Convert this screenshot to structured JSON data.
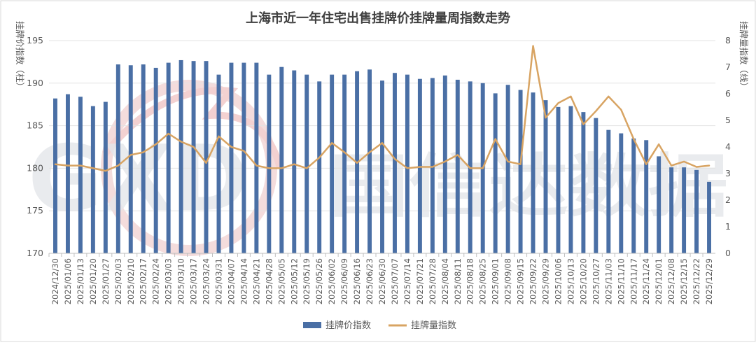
{
  "chart_data": {
    "type": "bar",
    "title": "上海市近一年住宅出售挂牌价挂牌量周指数走势",
    "ylabel_left": "挂牌价指数（柱）",
    "ylabel_right": "挂牌量指数（线）",
    "ylim_left": [
      170,
      195
    ],
    "yticks_left": [
      170,
      175,
      180,
      185,
      190,
      195
    ],
    "ylim_right": [
      0,
      8
    ],
    "yticks_right": [
      0,
      1,
      2,
      3,
      4,
      5,
      6,
      7,
      8
    ],
    "grid": true,
    "legend_position": "bottom",
    "watermark_text": "国信达数据",
    "categories": [
      "2024/12/30",
      "2025/01/06",
      "2025/01/13",
      "2025/01/20",
      "2025/01/27",
      "2025/02/03",
      "2025/02/10",
      "2025/02/17",
      "2025/02/24",
      "2025/03/03",
      "2025/03/10",
      "2025/03/17",
      "2025/03/24",
      "2025/03/31",
      "2025/04/07",
      "2025/04/14",
      "2025/04/21",
      "2025/04/28",
      "2025/05/05",
      "2025/05/12",
      "2025/05/19",
      "2025/05/26",
      "2025/06/02",
      "2025/06/09",
      "2025/06/16",
      "2025/06/23",
      "2025/06/30",
      "2025/07/07",
      "2025/07/14",
      "2025/07/21",
      "2025/07/28",
      "2025/08/04",
      "2025/08/11",
      "2025/08/18",
      "2025/08/25",
      "2025/09/01",
      "2025/09/08",
      "2025/09/15",
      "2025/09/22",
      "2025/09/29",
      "2025/10/06",
      "2025/10/13",
      "2025/10/20",
      "2025/10/27",
      "2025/11/03",
      "2025/11/10",
      "2025/11/17",
      "2025/11/24",
      "2025/12/01",
      "2025/12/08",
      "2025/12/15",
      "2025/12/22",
      "2025/12/29"
    ],
    "series": [
      {
        "name": "挂牌价指数",
        "kind": "bar",
        "axis": "left",
        "color": "#4a6fa5",
        "values": [
          188.2,
          188.7,
          188.4,
          187.3,
          187.8,
          192.2,
          192.1,
          192.2,
          191.8,
          192.4,
          192.7,
          192.6,
          192.6,
          191.0,
          192.4,
          192.4,
          192.4,
          191.0,
          191.9,
          191.5,
          191.0,
          190.2,
          191.0,
          191.0,
          191.4,
          191.6,
          190.3,
          191.2,
          191.0,
          190.5,
          190.6,
          190.9,
          190.4,
          190.2,
          190.0,
          188.8,
          189.8,
          189.2,
          188.9,
          188.0,
          187.2,
          187.3,
          186.6,
          185.9,
          184.5,
          184.1,
          183.5,
          183.3,
          181.4,
          180.1,
          180.1,
          179.8,
          178.4
        ]
      },
      {
        "name": "挂牌量指数",
        "kind": "line",
        "axis": "right",
        "color": "#d8a463",
        "values": [
          3.35,
          3.3,
          3.3,
          3.2,
          3.1,
          3.3,
          3.7,
          3.8,
          4.1,
          4.5,
          4.2,
          4.0,
          3.4,
          4.4,
          4.0,
          3.85,
          3.3,
          3.2,
          3.2,
          3.35,
          3.2,
          3.6,
          4.15,
          3.8,
          3.4,
          3.8,
          4.15,
          3.55,
          3.2,
          3.25,
          3.25,
          3.45,
          3.7,
          3.2,
          3.2,
          4.3,
          3.45,
          3.35,
          7.8,
          5.1,
          5.65,
          5.9,
          4.85,
          5.35,
          5.9,
          5.4,
          4.3,
          3.35,
          4.1,
          3.3,
          3.45,
          3.25,
          3.3
        ]
      }
    ]
  }
}
